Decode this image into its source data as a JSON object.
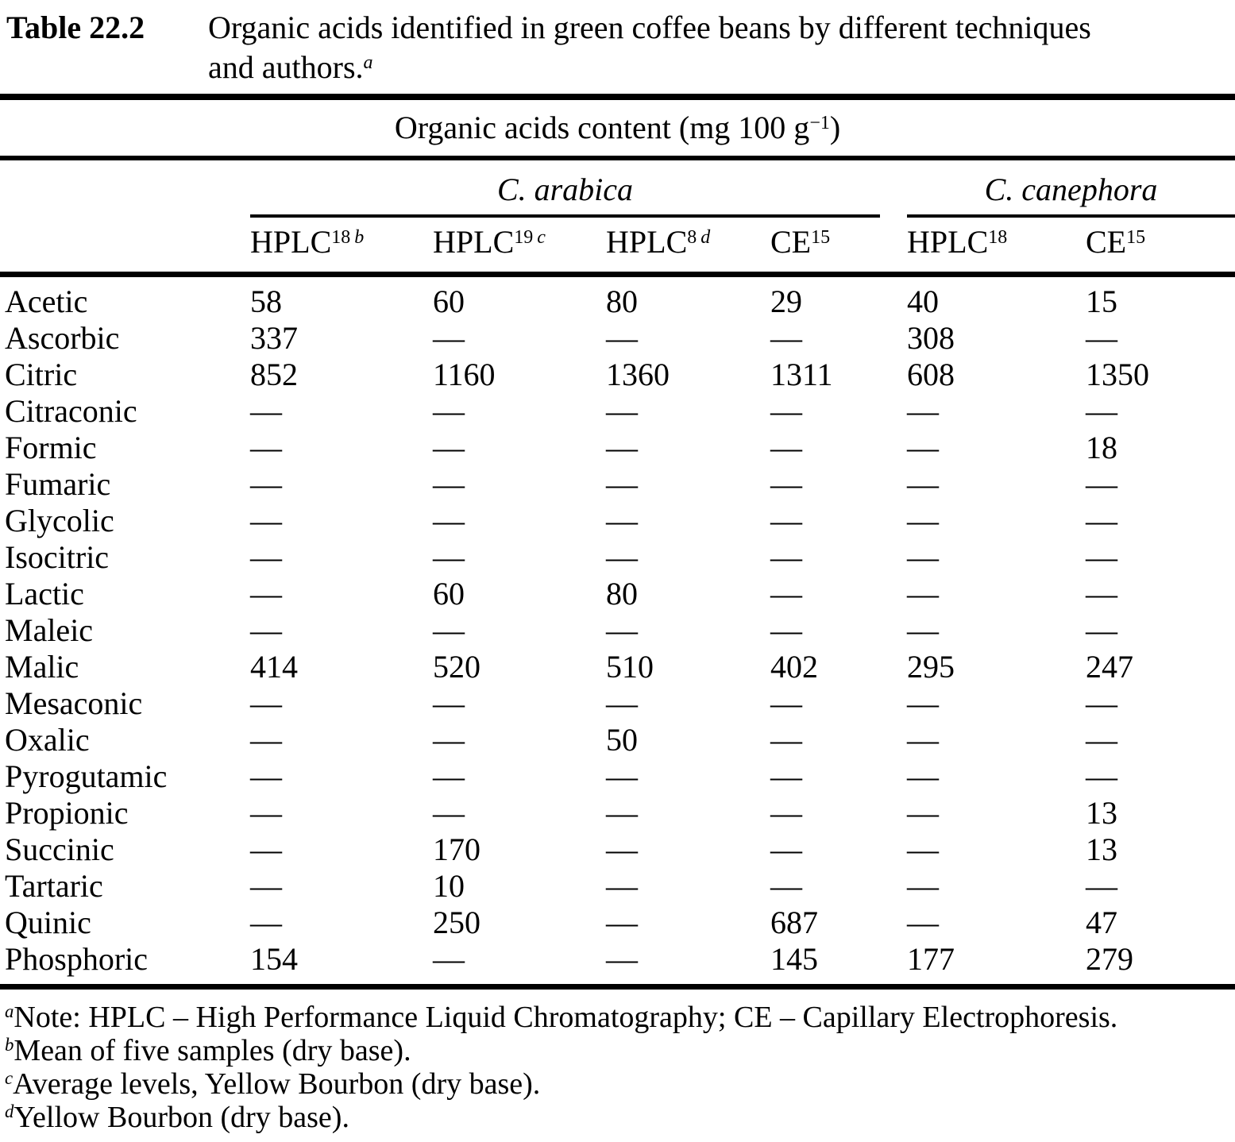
{
  "caption": {
    "label": "Table 22.2",
    "lines": [
      "Organic acids identified in green coffee beans by different techniques",
      "and authors."
    ],
    "footnote_marker": "a"
  },
  "table": {
    "unit_header": {
      "text": "Organic acids content (mg 100 g",
      "sup": "−1",
      "suffix": ")"
    },
    "groups": [
      {
        "label": "C. arabica",
        "span": 4
      },
      {
        "label": "C. canephora",
        "span": 2
      }
    ],
    "method_headers": [
      {
        "base": "HPLC",
        "sup": "18",
        "sup_note": "b"
      },
      {
        "base": "HPLC",
        "sup": "19",
        "sup_note": "c"
      },
      {
        "base": "HPLC",
        "sup": "8",
        "sup_note": "d"
      },
      {
        "base": "CE",
        "sup": "15",
        "sup_note": ""
      },
      {
        "base": "HPLC",
        "sup": "18",
        "sup_note": ""
      },
      {
        "base": "CE",
        "sup": "15",
        "sup_note": ""
      }
    ],
    "missing_symbol": "—",
    "rows": [
      {
        "acid": "Acetic",
        "values": [
          "58",
          "60",
          "80",
          "29",
          "40",
          "15"
        ]
      },
      {
        "acid": "Ascorbic",
        "values": [
          "337",
          "—",
          "—",
          "—",
          "308",
          "—"
        ]
      },
      {
        "acid": "Citric",
        "values": [
          "852",
          "1160",
          "1360",
          "1311",
          "608",
          "1350"
        ]
      },
      {
        "acid": "Citraconic",
        "values": [
          "—",
          "—",
          "—",
          "—",
          "—",
          "—"
        ]
      },
      {
        "acid": "Formic",
        "values": [
          "—",
          "—",
          "—",
          "—",
          "—",
          "18"
        ]
      },
      {
        "acid": "Fumaric",
        "values": [
          "—",
          "—",
          "—",
          "—",
          "—",
          "—"
        ]
      },
      {
        "acid": "Glycolic",
        "values": [
          "—",
          "—",
          "—",
          "—",
          "—",
          "—"
        ]
      },
      {
        "acid": "Isocitric",
        "values": [
          "—",
          "—",
          "—",
          "—",
          "—",
          "—"
        ]
      },
      {
        "acid": "Lactic",
        "values": [
          "—",
          "60",
          "80",
          "—",
          "—",
          "—"
        ]
      },
      {
        "acid": "Maleic",
        "values": [
          "—",
          "—",
          "—",
          "—",
          "—",
          "—"
        ]
      },
      {
        "acid": "Malic",
        "values": [
          "414",
          "520",
          "510",
          "402",
          "295",
          "247"
        ]
      },
      {
        "acid": "Mesaconic",
        "values": [
          "—",
          "—",
          "—",
          "—",
          "—",
          "—"
        ]
      },
      {
        "acid": "Oxalic",
        "values": [
          "—",
          "—",
          "50",
          "—",
          "—",
          "—"
        ]
      },
      {
        "acid": "Pyrogutamic",
        "values": [
          "—",
          "—",
          "—",
          "—",
          "—",
          "—"
        ]
      },
      {
        "acid": "Propionic",
        "values": [
          "—",
          "—",
          "—",
          "—",
          "—",
          "13"
        ]
      },
      {
        "acid": "Succinic",
        "values": [
          "—",
          "170",
          "—",
          "—",
          "—",
          "13"
        ]
      },
      {
        "acid": "Tartaric",
        "values": [
          "—",
          "10",
          "—",
          "—",
          "—",
          "—"
        ]
      },
      {
        "acid": "Quinic",
        "values": [
          "—",
          "250",
          "—",
          "687",
          "—",
          "47"
        ]
      },
      {
        "acid": "Phosphoric",
        "values": [
          "154",
          "—",
          "—",
          "145",
          "177",
          "279"
        ]
      }
    ]
  },
  "footnotes": [
    {
      "marker": "a",
      "text": "Note: HPLC – High Performance Liquid Chromatography; CE – Capillary Electrophoresis."
    },
    {
      "marker": "b",
      "text": "Mean of five samples (dry base)."
    },
    {
      "marker": "c",
      "text": "Average levels, Yellow Bourbon (dry base)."
    },
    {
      "marker": "d",
      "text": "Yellow Bourbon (dry base)."
    }
  ],
  "colors": {
    "background": "#ffffff",
    "text": "#000000",
    "rule": "#000000"
  }
}
